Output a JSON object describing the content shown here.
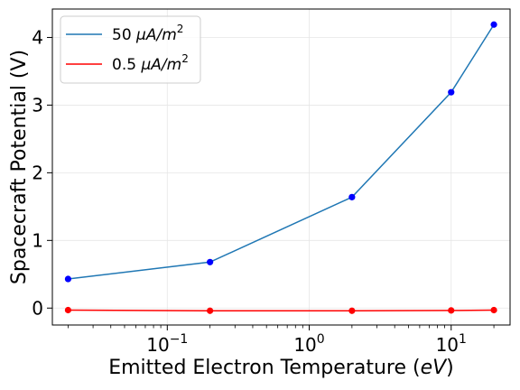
{
  "chart_data": {
    "type": "line",
    "xscale": "log",
    "xlabel": "Emitted Electron Temperature (eV)",
    "xlabel_parts": {
      "prefix": "Emitted Electron Temperature (",
      "unit": "eV",
      "suffix": ")"
    },
    "ylabel": "Spacecraft Potential (V)",
    "xlim": [
      0.0155,
      26
    ],
    "ylim": [
      -0.25,
      4.42
    ],
    "grid": true,
    "legend_position": "top-left",
    "x_ticks": [
      {
        "value": 0.1,
        "base": "10",
        "exp": "−1"
      },
      {
        "value": 1,
        "base": "10",
        "exp": "0"
      },
      {
        "value": 10,
        "base": "10",
        "exp": "1"
      }
    ],
    "y_ticks": [
      0,
      1,
      2,
      3,
      4
    ],
    "x": [
      0.02,
      0.2,
      2,
      10,
      20
    ],
    "series": [
      {
        "name": "50 μA/m²",
        "label_number": "50",
        "label_unit": "μA/m",
        "label_exp": "2",
        "line_color": "#1f77b4",
        "marker_color": "#0000ff",
        "values": [
          0.43,
          0.68,
          1.64,
          3.19,
          4.19
        ]
      },
      {
        "name": "0.5 μA/m²",
        "label_number": "0.5",
        "label_unit": "μA/m",
        "label_exp": "2",
        "line_color": "#ff0000",
        "marker_color": "#ff0000",
        "values": [
          -0.03,
          -0.04,
          -0.04,
          -0.035,
          -0.03
        ]
      }
    ]
  }
}
